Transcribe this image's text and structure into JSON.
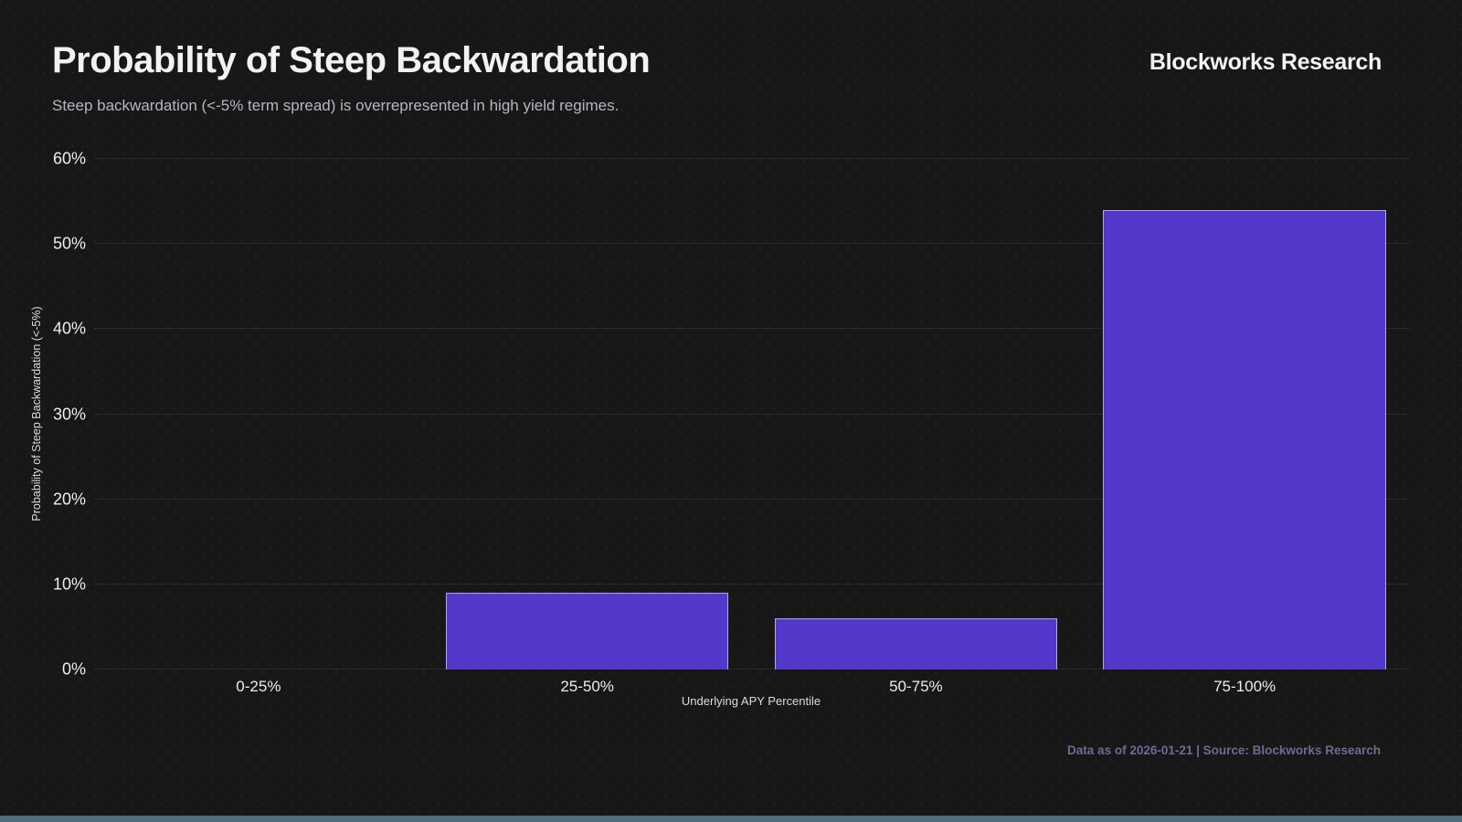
{
  "header": {
    "title": "Probability of Steep Backwardation",
    "subtitle": "Steep backwardation (<-5% term spread) is overrepresented in high yield regimes.",
    "brand": "Blockworks Research"
  },
  "chart_data": {
    "type": "bar",
    "title": "Probability of Steep Backwardation",
    "categories": [
      "0-25%",
      "25-50%",
      "50-75%",
      "75-100%"
    ],
    "values": [
      0,
      9,
      6,
      54
    ],
    "xlabel": "Underlying APY Percentile",
    "ylabel": "Probability of Steep Backwardation (<-5%)",
    "ylim": [
      0,
      60
    ],
    "yticks": [
      0,
      10,
      20,
      30,
      40,
      50,
      60
    ],
    "ytick_suffix": "%",
    "grid": true,
    "legend": false,
    "bar_color": "#5438cb",
    "bar_border_color": "rgba(226,224,242,0.65)",
    "bar_band_fraction": 0.86
  },
  "footer": {
    "note": "Data as of 2026-01-21 | Source: Blockworks Research"
  },
  "colors": {
    "background": "#171717",
    "title_text": "#f2f2f2",
    "subtitle_text": "#b6b6c6",
    "tick_text": "#ededed",
    "axis_title_text": "#dcdcdc",
    "gridline": "rgba(255,255,255,0.08)",
    "footer_text": "#6c6c94",
    "bottom_strip": "#4c6d79"
  }
}
